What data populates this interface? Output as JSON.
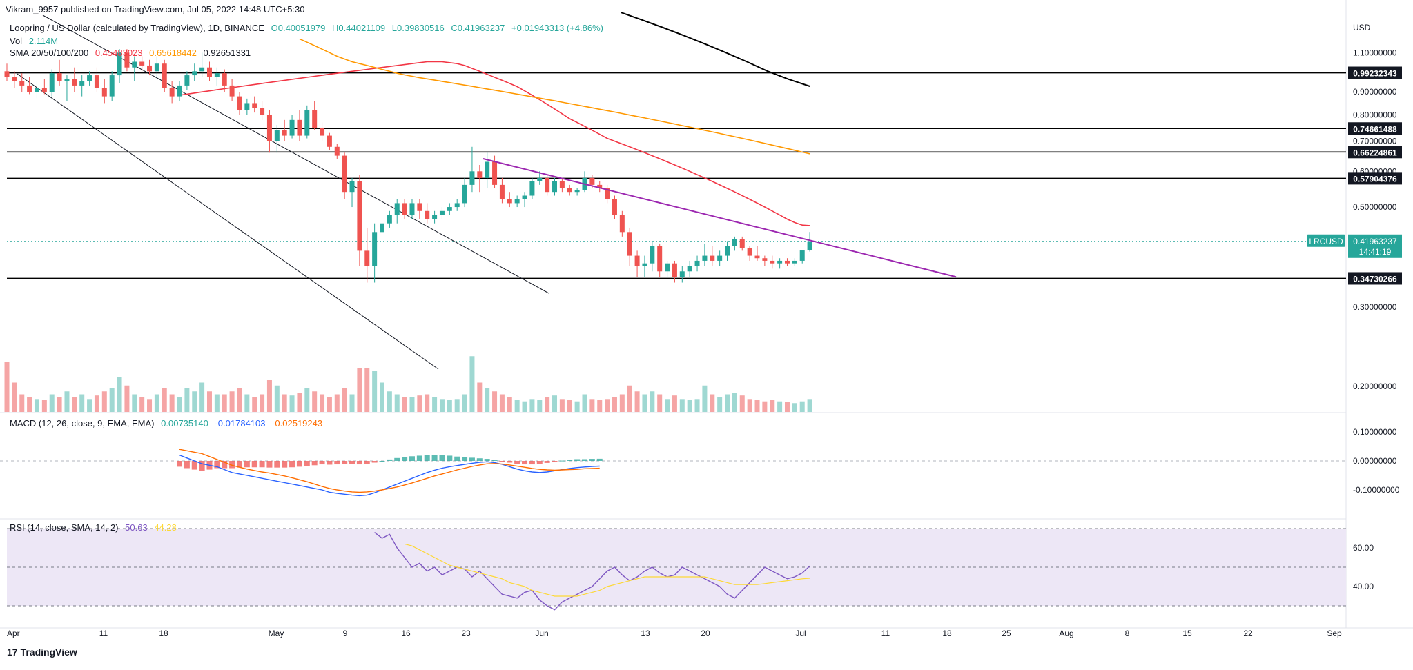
{
  "header": {
    "published": "Vikram_9957 published on TradingView.com, Jul 05, 2022 14:48 UTC+5:30"
  },
  "legend": {
    "symbol": "Loopring / US Dollar (calculated by TradingView), 1D, BINANCE",
    "o": "O0.40051979",
    "h": "H0.44021109",
    "l": "L0.39830516",
    "c": "C0.41963237",
    "chg": "+0.01943313 (+4.86%)",
    "vol_label": "Vol",
    "vol_value": "2.114M",
    "sma_label": "SMA 20/50/100/200",
    "sma_values": [
      "0.45483023",
      "0.65618442",
      "0.92651331"
    ],
    "macd_label": "MACD (12, 26, close, 9, EMA, EMA)",
    "macd_values": [
      "0.00735140",
      "-0.01784103",
      "-0.02519243"
    ],
    "rsi_label": "RSI (14, close, SMA, 14, 2)",
    "rsi_values": [
      "50.63",
      "44.28"
    ]
  },
  "colors": {
    "up": "#26a69a",
    "down": "#ef5350",
    "vol_up": "#9fd8d2",
    "vol_down": "#f5a5a5",
    "sma50": "#f23645",
    "sma100": "#ff9800",
    "sma200": "#000000",
    "trend": "#9c27b0",
    "macd": "#2962ff",
    "signal": "#ff6d00",
    "rsi": "#7e57c2",
    "rsi_ma": "#fdd835",
    "rsi_band": "#ede7f6"
  },
  "price_axis": {
    "currency": "USD",
    "ticks": [
      "1.10000000",
      "0.90000000",
      "0.80000000",
      "0.70000000",
      "0.60000000",
      "0.50000000",
      "0.30000000",
      "0.20000000"
    ],
    "levels": [
      "0.99232343",
      "0.74661488",
      "0.66224861",
      "0.57904376",
      "0.34730266"
    ],
    "last_symbol": "LRCUSD",
    "last_price": "0.41963237",
    "countdown": "14:41:19"
  },
  "macd_axis": {
    "ticks": [
      "0.10000000",
      "0.00000000",
      "-0.10000000"
    ]
  },
  "rsi_axis": {
    "ticks": [
      "60.00",
      "40.00"
    ]
  },
  "time_axis": {
    "labels": [
      "Apr",
      "11",
      "18",
      "May",
      "9",
      "16",
      "23",
      "Jun",
      "13",
      "20",
      "Jul",
      "11",
      "18",
      "25",
      "Aug",
      "8",
      "15",
      "22",
      "Sep"
    ]
  },
  "chart_data": {
    "type": "candlestick",
    "title": "Loopring / US Dollar (calculated by TradingView), 1D, BINANCE",
    "y_scale": "log",
    "ylim": [
      0.18,
      1.25
    ],
    "bars": [
      {
        "o": 1.0,
        "h": 1.04,
        "l": 0.95,
        "c": 0.97,
        "v": 0.85
      },
      {
        "o": 0.97,
        "h": 1.0,
        "l": 0.92,
        "c": 0.95,
        "v": 0.5
      },
      {
        "o": 0.95,
        "h": 0.99,
        "l": 0.9,
        "c": 0.93,
        "v": 0.3
      },
      {
        "o": 0.93,
        "h": 0.97,
        "l": 0.89,
        "c": 0.9,
        "v": 0.25
      },
      {
        "o": 0.9,
        "h": 0.95,
        "l": 0.87,
        "c": 0.92,
        "v": 0.22
      },
      {
        "o": 0.92,
        "h": 0.96,
        "l": 0.89,
        "c": 0.9,
        "v": 0.2
      },
      {
        "o": 0.9,
        "h": 1.01,
        "l": 0.88,
        "c": 0.99,
        "v": 0.3
      },
      {
        "o": 0.99,
        "h": 1.06,
        "l": 0.93,
        "c": 0.95,
        "v": 0.25
      },
      {
        "o": 0.95,
        "h": 0.98,
        "l": 0.86,
        "c": 0.96,
        "v": 0.35
      },
      {
        "o": 0.96,
        "h": 1.02,
        "l": 0.9,
        "c": 0.93,
        "v": 0.25
      },
      {
        "o": 0.93,
        "h": 0.98,
        "l": 0.88,
        "c": 0.95,
        "v": 0.3
      },
      {
        "o": 0.95,
        "h": 1.0,
        "l": 0.93,
        "c": 0.98,
        "v": 0.22
      },
      {
        "o": 0.98,
        "h": 1.02,
        "l": 0.9,
        "c": 0.92,
        "v": 0.28
      },
      {
        "o": 0.92,
        "h": 0.96,
        "l": 0.85,
        "c": 0.88,
        "v": 0.35
      },
      {
        "o": 0.88,
        "h": 1.0,
        "l": 0.86,
        "c": 0.98,
        "v": 0.4
      },
      {
        "o": 0.98,
        "h": 1.12,
        "l": 0.94,
        "c": 1.1,
        "v": 0.6
      },
      {
        "o": 1.1,
        "h": 1.12,
        "l": 1.0,
        "c": 1.02,
        "v": 0.45
      },
      {
        "o": 1.02,
        "h": 1.08,
        "l": 0.95,
        "c": 1.05,
        "v": 0.3
      },
      {
        "o": 1.05,
        "h": 1.08,
        "l": 1.0,
        "c": 1.03,
        "v": 0.25
      },
      {
        "o": 1.03,
        "h": 1.06,
        "l": 0.98,
        "c": 1.0,
        "v": 0.22
      },
      {
        "o": 1.0,
        "h": 1.08,
        "l": 0.96,
        "c": 1.04,
        "v": 0.3
      },
      {
        "o": 1.04,
        "h": 1.06,
        "l": 0.9,
        "c": 0.92,
        "v": 0.4
      },
      {
        "o": 0.92,
        "h": 0.95,
        "l": 0.85,
        "c": 0.88,
        "v": 0.3
      },
      {
        "o": 0.88,
        "h": 0.95,
        "l": 0.86,
        "c": 0.93,
        "v": 0.25
      },
      {
        "o": 0.93,
        "h": 1.0,
        "l": 0.91,
        "c": 0.98,
        "v": 0.4
      },
      {
        "o": 0.98,
        "h": 1.04,
        "l": 0.95,
        "c": 1.0,
        "v": 0.35
      },
      {
        "o": 1.0,
        "h": 1.1,
        "l": 0.97,
        "c": 1.02,
        "v": 0.5
      },
      {
        "o": 1.02,
        "h": 1.05,
        "l": 0.95,
        "c": 0.97,
        "v": 0.35
      },
      {
        "o": 0.97,
        "h": 1.02,
        "l": 0.93,
        "c": 0.99,
        "v": 0.3
      },
      {
        "o": 0.99,
        "h": 1.01,
        "l": 0.9,
        "c": 0.93,
        "v": 0.3
      },
      {
        "o": 0.93,
        "h": 0.96,
        "l": 0.86,
        "c": 0.88,
        "v": 0.35
      },
      {
        "o": 0.88,
        "h": 0.9,
        "l": 0.8,
        "c": 0.82,
        "v": 0.4
      },
      {
        "o": 0.82,
        "h": 0.87,
        "l": 0.8,
        "c": 0.85,
        "v": 0.3
      },
      {
        "o": 0.85,
        "h": 0.88,
        "l": 0.81,
        "c": 0.83,
        "v": 0.25
      },
      {
        "o": 0.83,
        "h": 0.86,
        "l": 0.78,
        "c": 0.8,
        "v": 0.3
      },
      {
        "o": 0.8,
        "h": 0.82,
        "l": 0.66,
        "c": 0.7,
        "v": 0.55
      },
      {
        "o": 0.7,
        "h": 0.76,
        "l": 0.66,
        "c": 0.74,
        "v": 0.45
      },
      {
        "o": 0.74,
        "h": 0.78,
        "l": 0.7,
        "c": 0.72,
        "v": 0.3
      },
      {
        "o": 0.72,
        "h": 0.8,
        "l": 0.71,
        "c": 0.78,
        "v": 0.28
      },
      {
        "o": 0.78,
        "h": 0.82,
        "l": 0.7,
        "c": 0.72,
        "v": 0.32
      },
      {
        "o": 0.72,
        "h": 0.84,
        "l": 0.71,
        "c": 0.82,
        "v": 0.4
      },
      {
        "o": 0.82,
        "h": 0.86,
        "l": 0.74,
        "c": 0.75,
        "v": 0.35
      },
      {
        "o": 0.75,
        "h": 0.77,
        "l": 0.7,
        "c": 0.72,
        "v": 0.3
      },
      {
        "o": 0.72,
        "h": 0.73,
        "l": 0.67,
        "c": 0.68,
        "v": 0.25
      },
      {
        "o": 0.68,
        "h": 0.69,
        "l": 0.64,
        "c": 0.65,
        "v": 0.3
      },
      {
        "o": 0.65,
        "h": 0.66,
        "l": 0.52,
        "c": 0.54,
        "v": 0.4
      },
      {
        "o": 0.54,
        "h": 0.58,
        "l": 0.5,
        "c": 0.57,
        "v": 0.3
      },
      {
        "o": 0.57,
        "h": 0.59,
        "l": 0.37,
        "c": 0.4,
        "v": 0.75
      },
      {
        "o": 0.4,
        "h": 0.45,
        "l": 0.34,
        "c": 0.37,
        "v": 0.75
      },
      {
        "o": 0.37,
        "h": 0.46,
        "l": 0.34,
        "c": 0.44,
        "v": 0.7
      },
      {
        "o": 0.44,
        "h": 0.47,
        "l": 0.42,
        "c": 0.46,
        "v": 0.5
      },
      {
        "o": 0.46,
        "h": 0.49,
        "l": 0.45,
        "c": 0.48,
        "v": 0.35
      },
      {
        "o": 0.48,
        "h": 0.52,
        "l": 0.46,
        "c": 0.51,
        "v": 0.3
      },
      {
        "o": 0.51,
        "h": 0.52,
        "l": 0.47,
        "c": 0.48,
        "v": 0.25
      },
      {
        "o": 0.48,
        "h": 0.52,
        "l": 0.47,
        "c": 0.51,
        "v": 0.25
      },
      {
        "o": 0.51,
        "h": 0.52,
        "l": 0.47,
        "c": 0.49,
        "v": 0.28
      },
      {
        "o": 0.49,
        "h": 0.51,
        "l": 0.46,
        "c": 0.47,
        "v": 0.3
      },
      {
        "o": 0.47,
        "h": 0.49,
        "l": 0.46,
        "c": 0.48,
        "v": 0.25
      },
      {
        "o": 0.48,
        "h": 0.5,
        "l": 0.47,
        "c": 0.49,
        "v": 0.22
      },
      {
        "o": 0.49,
        "h": 0.51,
        "l": 0.48,
        "c": 0.5,
        "v": 0.2
      },
      {
        "o": 0.5,
        "h": 0.52,
        "l": 0.49,
        "c": 0.51,
        "v": 0.22
      },
      {
        "o": 0.51,
        "h": 0.58,
        "l": 0.5,
        "c": 0.56,
        "v": 0.3
      },
      {
        "o": 0.56,
        "h": 0.68,
        "l": 0.54,
        "c": 0.6,
        "v": 0.95
      },
      {
        "o": 0.6,
        "h": 0.62,
        "l": 0.54,
        "c": 0.58,
        "v": 0.5
      },
      {
        "o": 0.58,
        "h": 0.66,
        "l": 0.55,
        "c": 0.63,
        "v": 0.4
      },
      {
        "o": 0.63,
        "h": 0.65,
        "l": 0.55,
        "c": 0.56,
        "v": 0.35
      },
      {
        "o": 0.56,
        "h": 0.58,
        "l": 0.51,
        "c": 0.52,
        "v": 0.3
      },
      {
        "o": 0.52,
        "h": 0.54,
        "l": 0.5,
        "c": 0.51,
        "v": 0.25
      },
      {
        "o": 0.51,
        "h": 0.53,
        "l": 0.5,
        "c": 0.52,
        "v": 0.2
      },
      {
        "o": 0.52,
        "h": 0.54,
        "l": 0.5,
        "c": 0.53,
        "v": 0.18
      },
      {
        "o": 0.53,
        "h": 0.58,
        "l": 0.52,
        "c": 0.57,
        "v": 0.22
      },
      {
        "o": 0.57,
        "h": 0.6,
        "l": 0.56,
        "c": 0.58,
        "v": 0.2
      },
      {
        "o": 0.58,
        "h": 0.59,
        "l": 0.53,
        "c": 0.54,
        "v": 0.25
      },
      {
        "o": 0.54,
        "h": 0.58,
        "l": 0.53,
        "c": 0.57,
        "v": 0.28
      },
      {
        "o": 0.57,
        "h": 0.58,
        "l": 0.54,
        "c": 0.55,
        "v": 0.22
      },
      {
        "o": 0.55,
        "h": 0.56,
        "l": 0.53,
        "c": 0.54,
        "v": 0.2
      },
      {
        "o": 0.54,
        "h": 0.55,
        "l": 0.53,
        "c": 0.545,
        "v": 0.18
      },
      {
        "o": 0.545,
        "h": 0.6,
        "l": 0.54,
        "c": 0.58,
        "v": 0.3
      },
      {
        "o": 0.58,
        "h": 0.59,
        "l": 0.55,
        "c": 0.56,
        "v": 0.22
      },
      {
        "o": 0.56,
        "h": 0.57,
        "l": 0.54,
        "c": 0.55,
        "v": 0.2
      },
      {
        "o": 0.55,
        "h": 0.56,
        "l": 0.51,
        "c": 0.52,
        "v": 0.22
      },
      {
        "o": 0.52,
        "h": 0.53,
        "l": 0.47,
        "c": 0.48,
        "v": 0.25
      },
      {
        "o": 0.48,
        "h": 0.49,
        "l": 0.43,
        "c": 0.44,
        "v": 0.3
      },
      {
        "o": 0.44,
        "h": 0.45,
        "l": 0.37,
        "c": 0.39,
        "v": 0.45
      },
      {
        "o": 0.39,
        "h": 0.4,
        "l": 0.35,
        "c": 0.37,
        "v": 0.35
      },
      {
        "o": 0.37,
        "h": 0.39,
        "l": 0.35,
        "c": 0.375,
        "v": 0.3
      },
      {
        "o": 0.375,
        "h": 0.42,
        "l": 0.36,
        "c": 0.41,
        "v": 0.35
      },
      {
        "o": 0.41,
        "h": 0.415,
        "l": 0.35,
        "c": 0.36,
        "v": 0.3
      },
      {
        "o": 0.36,
        "h": 0.38,
        "l": 0.35,
        "c": 0.375,
        "v": 0.22
      },
      {
        "o": 0.375,
        "h": 0.38,
        "l": 0.34,
        "c": 0.35,
        "v": 0.28
      },
      {
        "o": 0.35,
        "h": 0.37,
        "l": 0.34,
        "c": 0.36,
        "v": 0.22
      },
      {
        "o": 0.36,
        "h": 0.38,
        "l": 0.35,
        "c": 0.37,
        "v": 0.2
      },
      {
        "o": 0.37,
        "h": 0.39,
        "l": 0.36,
        "c": 0.38,
        "v": 0.22
      },
      {
        "o": 0.38,
        "h": 0.415,
        "l": 0.37,
        "c": 0.39,
        "v": 0.45
      },
      {
        "o": 0.39,
        "h": 0.41,
        "l": 0.37,
        "c": 0.38,
        "v": 0.3
      },
      {
        "o": 0.38,
        "h": 0.4,
        "l": 0.37,
        "c": 0.39,
        "v": 0.25
      },
      {
        "o": 0.39,
        "h": 0.42,
        "l": 0.38,
        "c": 0.41,
        "v": 0.3
      },
      {
        "o": 0.41,
        "h": 0.43,
        "l": 0.4,
        "c": 0.425,
        "v": 0.32
      },
      {
        "o": 0.425,
        "h": 0.43,
        "l": 0.4,
        "c": 0.405,
        "v": 0.28
      },
      {
        "o": 0.405,
        "h": 0.41,
        "l": 0.38,
        "c": 0.39,
        "v": 0.22
      },
      {
        "o": 0.39,
        "h": 0.41,
        "l": 0.38,
        "c": 0.385,
        "v": 0.2
      },
      {
        "o": 0.385,
        "h": 0.39,
        "l": 0.37,
        "c": 0.38,
        "v": 0.18
      },
      {
        "o": 0.38,
        "h": 0.39,
        "l": 0.365,
        "c": 0.375,
        "v": 0.2
      },
      {
        "o": 0.375,
        "h": 0.385,
        "l": 0.365,
        "c": 0.38,
        "v": 0.18
      },
      {
        "o": 0.38,
        "h": 0.385,
        "l": 0.37,
        "c": 0.375,
        "v": 0.17
      },
      {
        "o": 0.375,
        "h": 0.385,
        "l": 0.37,
        "c": 0.38,
        "v": 0.15
      },
      {
        "o": 0.38,
        "h": 0.4,
        "l": 0.375,
        "c": 0.4005,
        "v": 0.18
      },
      {
        "o": 0.40051979,
        "h": 0.44021109,
        "l": 0.39830516,
        "c": 0.41963237,
        "v": 0.22
      }
    ],
    "sma50": [
      0.885,
      0.89,
      0.895,
      0.9,
      0.905,
      0.91,
      0.915,
      0.92,
      0.925,
      0.93,
      0.935,
      0.94,
      0.945,
      0.95,
      0.955,
      0.96,
      0.965,
      0.97,
      0.975,
      0.98,
      0.985,
      0.99,
      0.995,
      1.0,
      1.005,
      1.01,
      1.015,
      1.02,
      1.025,
      1.03,
      1.035,
      1.04,
      1.045,
      1.05,
      1.05,
      1.05,
      1.045,
      1.04,
      1.03,
      1.015,
      1.0,
      0.985,
      0.97,
      0.955,
      0.94,
      0.925,
      0.905,
      0.885,
      0.865,
      0.845,
      0.825,
      0.805,
      0.785,
      0.77,
      0.755,
      0.74,
      0.725,
      0.71,
      0.7,
      0.69,
      0.68,
      0.67,
      0.66,
      0.65,
      0.64,
      0.63,
      0.62,
      0.61,
      0.6,
      0.59,
      0.58,
      0.57,
      0.56,
      0.55,
      0.54,
      0.53,
      0.52,
      0.51,
      0.5,
      0.49,
      0.48,
      0.47,
      0.462,
      0.456,
      0.4548
    ],
    "sma100": [
      1.18,
      1.16,
      1.14,
      1.12,
      1.1,
      1.08,
      1.065,
      1.05,
      1.04,
      1.03,
      1.02,
      1.01,
      1.0,
      0.99,
      0.982,
      0.975,
      0.968,
      0.962,
      0.956,
      0.95,
      0.944,
      0.938,
      0.932,
      0.926,
      0.92,
      0.914,
      0.908,
      0.902,
      0.896,
      0.89,
      0.884,
      0.878,
      0.872,
      0.866,
      0.86,
      0.854,
      0.848,
      0.842,
      0.836,
      0.83,
      0.824,
      0.818,
      0.812,
      0.806,
      0.8,
      0.794,
      0.788,
      0.782,
      0.776,
      0.77,
      0.764,
      0.758,
      0.752,
      0.746,
      0.74,
      0.734,
      0.728,
      0.722,
      0.716,
      0.71,
      0.704,
      0.698,
      0.692,
      0.686,
      0.68,
      0.674,
      0.668,
      0.662,
      0.6562
    ],
    "sma200": [
      1.35,
      1.3,
      1.25,
      1.2,
      1.15,
      1.1,
      1.05,
      1.0,
      0.96,
      0.9265
    ],
    "trend_line": {
      "from": "0.64 (May 24)",
      "to": "0.35 (Jul 18)"
    },
    "horizontal_levels": [
      0.99232343,
      0.74661488,
      0.66224861,
      0.57904376,
      0.34730266
    ],
    "macd_line": [
      0.02,
      0.01,
      0.0,
      -0.01,
      -0.015,
      -0.02,
      -0.03,
      -0.04,
      -0.045,
      -0.05,
      -0.055,
      -0.06,
      -0.065,
      -0.07,
      -0.075,
      -0.08,
      -0.085,
      -0.09,
      -0.095,
      -0.1,
      -0.108,
      -0.112,
      -0.115,
      -0.118,
      -0.12,
      -0.118,
      -0.11,
      -0.1,
      -0.09,
      -0.08,
      -0.07,
      -0.06,
      -0.05,
      -0.04,
      -0.032,
      -0.025,
      -0.02,
      -0.016,
      -0.012,
      -0.008,
      -0.005,
      -0.003,
      -0.006,
      -0.012,
      -0.02,
      -0.028,
      -0.034,
      -0.038,
      -0.04,
      -0.038,
      -0.034,
      -0.03,
      -0.026,
      -0.023,
      -0.021,
      -0.019,
      -0.0178
    ],
    "signal_line": [
      0.04,
      0.035,
      0.03,
      0.025,
      0.015,
      0.005,
      -0.005,
      -0.015,
      -0.022,
      -0.028,
      -0.033,
      -0.038,
      -0.042,
      -0.047,
      -0.052,
      -0.058,
      -0.065,
      -0.072,
      -0.08,
      -0.088,
      -0.095,
      -0.1,
      -0.104,
      -0.107,
      -0.108,
      -0.107,
      -0.104,
      -0.1,
      -0.095,
      -0.09,
      -0.083,
      -0.076,
      -0.068,
      -0.06,
      -0.052,
      -0.045,
      -0.038,
      -0.031,
      -0.025,
      -0.019,
      -0.014,
      -0.01,
      -0.009,
      -0.011,
      -0.014,
      -0.018,
      -0.022,
      -0.026,
      -0.029,
      -0.031,
      -0.032,
      -0.031,
      -0.03,
      -0.029,
      -0.027,
      -0.026,
      -0.0252
    ],
    "rsi": [
      68,
      65,
      67,
      60,
      55,
      50,
      52,
      48,
      50,
      46,
      48,
      50,
      49,
      45,
      48,
      44,
      40,
      36,
      35,
      34,
      37,
      38,
      33,
      30,
      28,
      32,
      34,
      36,
      38,
      40,
      44,
      48,
      50,
      46,
      43,
      45,
      48,
      50,
      47,
      45,
      46,
      50,
      48,
      46,
      44,
      42,
      40,
      36,
      34,
      38,
      42,
      46,
      50,
      48,
      46,
      44,
      45,
      47,
      50.63
    ],
    "rsi_ma": [
      62,
      61,
      59,
      57,
      55,
      53,
      51,
      50,
      49,
      48,
      47,
      46,
      45,
      44,
      42,
      41,
      40,
      38,
      37,
      36,
      35,
      35,
      35,
      35,
      36,
      37,
      38,
      40,
      41,
      42,
      43,
      44,
      45,
      45,
      45,
      45,
      45,
      45,
      45,
      45,
      45,
      44,
      43,
      42,
      41,
      41,
      41,
      41,
      41.5,
      42,
      42.5,
      43,
      43.5,
      44,
      44.28
    ]
  }
}
